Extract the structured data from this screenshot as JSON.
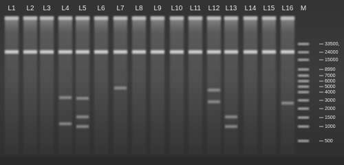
{
  "lanes": [
    "L1",
    "L2",
    "L3",
    "L4",
    "L5",
    "L6",
    "L7",
    "L8",
    "L9",
    "L10",
    "L11",
    "L12",
    "L13",
    "L14",
    "L15",
    "L16",
    "M"
  ],
  "marker_sizes": [
    "33500,",
    "24000",
    "15000",
    "8990",
    "7000",
    "6000",
    "5000",
    "4000",
    "3000",
    "2000",
    "1500",
    "1000",
    "500"
  ]
}
